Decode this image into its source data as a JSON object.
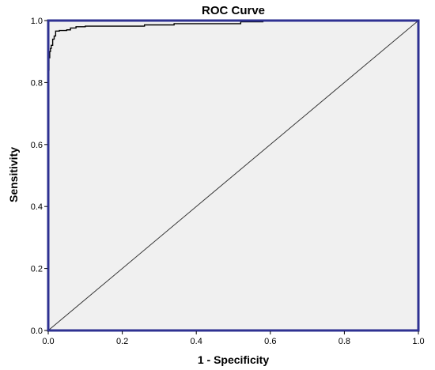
{
  "chart_data": {
    "type": "line",
    "title": "ROC Curve",
    "xlabel": "1 - Specificity",
    "ylabel": "Sensitivity",
    "xlim": [
      0,
      1
    ],
    "ylim": [
      0,
      1
    ],
    "x_ticks": [
      "0.0",
      "0.2",
      "0.4",
      "0.6",
      "0.8",
      "1.0"
    ],
    "y_ticks": [
      "0.0",
      "0.2",
      "0.4",
      "0.6",
      "0.8",
      "1.0"
    ],
    "grid": false,
    "legend": "none",
    "colors": {
      "frame": "#2e3192",
      "plot_bg": "#f0f0f0",
      "curve": "#000000",
      "reference": "#333333"
    },
    "series": [
      {
        "x": [
          0,
          0,
          0.002,
          0.002,
          0.004,
          0.004,
          0.006,
          0.006,
          0.008,
          0.008,
          0.012,
          0.012,
          0.016,
          0.016,
          0.02,
          0.02,
          0.03,
          0.03,
          0.05,
          0.05,
          0.06,
          0.06,
          0.075,
          0.075,
          0.1,
          0.1,
          0.26,
          0.26,
          0.34,
          0.34,
          0.52,
          0.52,
          0.58,
          0.58,
          1.0
        ],
        "y": [
          0,
          0.84,
          0.84,
          0.88,
          0.88,
          0.9,
          0.9,
          0.91,
          0.91,
          0.92,
          0.92,
          0.94,
          0.94,
          0.95,
          0.95,
          0.966,
          0.966,
          0.968,
          0.968,
          0.97,
          0.97,
          0.976,
          0.976,
          0.98,
          0.98,
          0.982,
          0.982,
          0.986,
          0.986,
          0.99,
          0.99,
          0.996,
          0.996,
          1.0,
          1.0
        ]
      },
      {
        "x": [
          0,
          1
        ],
        "y": [
          0,
          1
        ]
      }
    ]
  }
}
